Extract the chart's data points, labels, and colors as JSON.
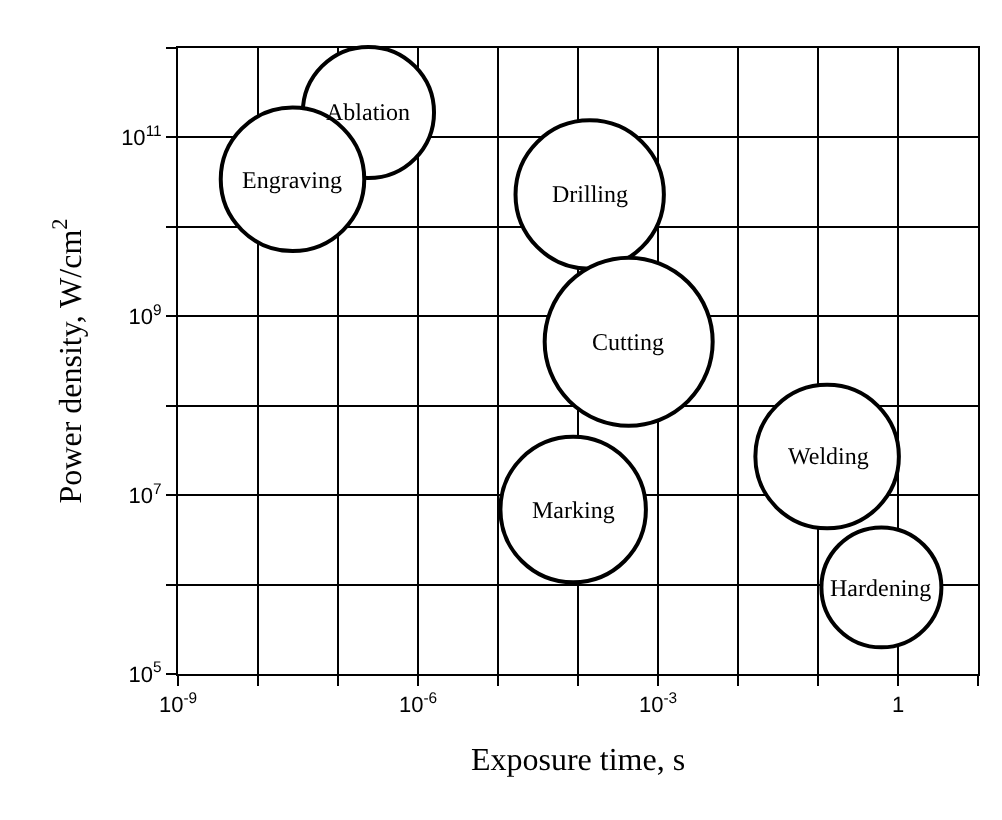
{
  "chart_data": {
    "type": "bubble",
    "xlabel": "Exposure time, s",
    "ylabel": "Power density, W/cm$^{2}$",
    "log": "xy",
    "grid": true,
    "marker": "circle",
    "xlim": [
      1e-09,
      10
    ],
    "ylim": [
      100000.0,
      1000000000000.0
    ],
    "xticks": [
      {
        "value": 1e-09,
        "label": "10$^{-9}$"
      },
      {
        "value": 1e-08,
        "label": null
      },
      {
        "value": 1e-07,
        "label": null
      },
      {
        "value": 1e-06,
        "label": "10$^{-6}$"
      },
      {
        "value": 1e-05,
        "label": null
      },
      {
        "value": 0.0001,
        "label": null
      },
      {
        "value": 0.001,
        "label": "10$^{-3}$"
      },
      {
        "value": 0.01,
        "label": null
      },
      {
        "value": 0.1,
        "label": null
      },
      {
        "value": 1,
        "label": "1"
      },
      {
        "value": 10,
        "label": null
      }
    ],
    "yticks": [
      {
        "value": 100000.0,
        "label": "10$^{5}$"
      },
      {
        "value": 1000000.0,
        "label": null
      },
      {
        "value": 10000000.0,
        "label": "10$^{7}$"
      },
      {
        "value": 100000000.0,
        "label": null
      },
      {
        "value": 1000000000.0,
        "label": "10$^{9}$"
      },
      {
        "value": 10000000000.0,
        "label": null
      },
      {
        "value": 100000000000.0,
        "label": "10$^{11}$"
      },
      {
        "value": 1000000000000.0,
        "label": null
      }
    ],
    "series": [
      {
        "color": "#000000",
        "x": [
          2.4e-07,
          2.7e-08,
          0.00014,
          0.00043,
          8.7e-05,
          0.13,
          0.62
        ],
        "values": [
          190000000000.0,
          34000000000.0,
          23000000000.0,
          520000000.0,
          6900000.0,
          27000000.0,
          930000.0
        ],
        "sizes": [
          0.61,
          0.73,
          0.78,
          1,
          0.75,
          0.73,
          0.51
        ]
      }
    ],
    "annotations": [
      {
        "text": "Ablation",
        "x": 2.4e-07,
        "y": 190000000000.0
      },
      {
        "text": "Engraving",
        "x": 2.7e-08,
        "y": 34000000000.0
      },
      {
        "text": "Drilling",
        "x": 0.00014,
        "y": 23000000000.0
      },
      {
        "text": "Cutting",
        "x": 0.00043,
        "y": 520000000.0
      },
      {
        "text": "Marking",
        "x": 8.7e-05,
        "y": 6900000.0
      },
      {
        "text": "Welding",
        "x": 0.13,
        "y": 27000000.0
      },
      {
        "text": "Hardening",
        "x": 0.62,
        "y": 930000.0
      }
    ]
  }
}
